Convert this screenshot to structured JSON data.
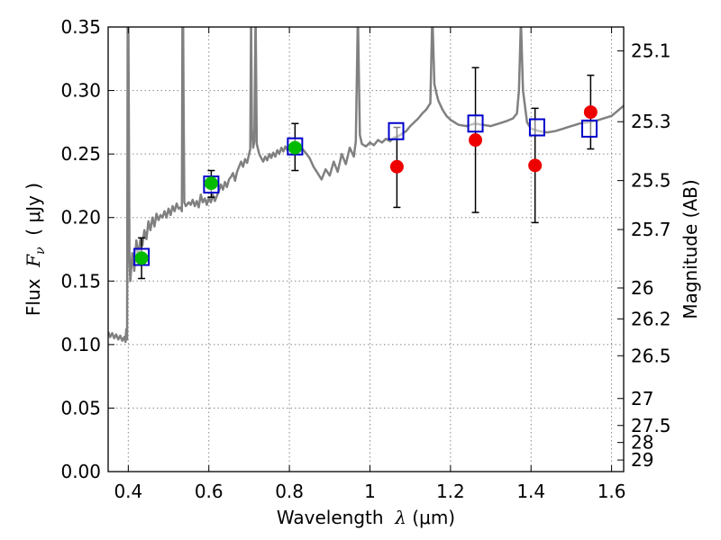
{
  "chart_data": {
    "type": "scatter",
    "xlabel_prefix": "Wavelength  ",
    "xlabel_symbol": "λ",
    "xlabel_unit": " (μm)",
    "ylabel_prefix": "Flux  ",
    "ylabel_symbol": "F",
    "ylabel_sub": "ν",
    "ylabel_unit": "  ( μJy )",
    "y2label": "Magnitude (AB)",
    "xlim": [
      0.35,
      1.63
    ],
    "ylim": [
      0.0,
      0.35
    ],
    "grid": true,
    "x_ticks": [
      {
        "value": 0.4,
        "label": "0.4"
      },
      {
        "value": 0.6,
        "label": "0.6"
      },
      {
        "value": 0.8,
        "label": "0.8"
      },
      {
        "value": 1.0,
        "label": "1"
      },
      {
        "value": 1.2,
        "label": "1.2"
      },
      {
        "value": 1.4,
        "label": "1.4"
      },
      {
        "value": 1.6,
        "label": "1.6"
      }
    ],
    "y_ticks": [
      {
        "value": 0.0,
        "label": "0.00"
      },
      {
        "value": 0.05,
        "label": "0.05"
      },
      {
        "value": 0.1,
        "label": "0.10"
      },
      {
        "value": 0.15,
        "label": "0.15"
      },
      {
        "value": 0.2,
        "label": "0.20"
      },
      {
        "value": 0.25,
        "label": "0.25"
      },
      {
        "value": 0.3,
        "label": "0.30"
      },
      {
        "value": 0.35,
        "label": "0.35"
      }
    ],
    "mag_ticks": [
      {
        "value": 25.1,
        "label": "25.1"
      },
      {
        "value": 25.3,
        "label": "25.3"
      },
      {
        "value": 25.5,
        "label": "25.5"
      },
      {
        "value": 25.7,
        "label": "25.7"
      },
      {
        "value": 26.0,
        "label": "26"
      },
      {
        "value": 26.2,
        "label": "26.2"
      },
      {
        "value": 26.5,
        "label": "26.5"
      },
      {
        "value": 27.0,
        "label": "27"
      },
      {
        "value": 27.5,
        "label": "27.5"
      },
      {
        "value": 28.0,
        "label": "28"
      },
      {
        "value": 29.0,
        "label": "29"
      }
    ],
    "colors": {
      "template": "#808080",
      "model": "#0000cc",
      "optical": "#00bb00",
      "nir": "#ee0000",
      "errorbar": "#000000",
      "grid": "#888888"
    },
    "template_spectrum": [
      [
        0.35,
        0.11
      ],
      [
        0.355,
        0.106
      ],
      [
        0.36,
        0.109
      ],
      [
        0.365,
        0.105
      ],
      [
        0.37,
        0.108
      ],
      [
        0.375,
        0.104
      ],
      [
        0.38,
        0.107
      ],
      [
        0.385,
        0.103
      ],
      [
        0.39,
        0.106
      ],
      [
        0.393,
        0.102
      ],
      [
        0.395,
        0.112
      ],
      [
        0.397,
        0.104
      ],
      [
        0.399,
        0.43
      ],
      [
        0.401,
        0.3
      ],
      [
        0.403,
        0.165
      ],
      [
        0.405,
        0.15
      ],
      [
        0.41,
        0.172
      ],
      [
        0.415,
        0.158
      ],
      [
        0.42,
        0.182
      ],
      [
        0.425,
        0.17
      ],
      [
        0.43,
        0.183
      ],
      [
        0.435,
        0.178
      ],
      [
        0.44,
        0.19
      ],
      [
        0.445,
        0.183
      ],
      [
        0.45,
        0.197
      ],
      [
        0.455,
        0.19
      ],
      [
        0.46,
        0.2
      ],
      [
        0.465,
        0.193
      ],
      [
        0.47,
        0.203
      ],
      [
        0.475,
        0.198
      ],
      [
        0.48,
        0.202
      ],
      [
        0.485,
        0.2
      ],
      [
        0.49,
        0.205
      ],
      [
        0.495,
        0.2
      ],
      [
        0.5,
        0.207
      ],
      [
        0.505,
        0.202
      ],
      [
        0.51,
        0.209
      ],
      [
        0.515,
        0.205
      ],
      [
        0.52,
        0.211
      ],
      [
        0.525,
        0.207
      ],
      [
        0.53,
        0.208
      ],
      [
        0.533,
        0.205
      ],
      [
        0.535,
        0.42
      ],
      [
        0.537,
        0.3
      ],
      [
        0.539,
        0.212
      ],
      [
        0.543,
        0.209
      ],
      [
        0.55,
        0.212
      ],
      [
        0.555,
        0.21
      ],
      [
        0.56,
        0.214
      ],
      [
        0.565,
        0.209
      ],
      [
        0.57,
        0.213
      ],
      [
        0.575,
        0.208
      ],
      [
        0.58,
        0.218
      ],
      [
        0.585,
        0.212
      ],
      [
        0.59,
        0.215
      ],
      [
        0.595,
        0.21
      ],
      [
        0.6,
        0.216
      ],
      [
        0.605,
        0.212
      ],
      [
        0.61,
        0.218
      ],
      [
        0.615,
        0.213
      ],
      [
        0.62,
        0.217
      ],
      [
        0.625,
        0.221
      ],
      [
        0.63,
        0.226
      ],
      [
        0.635,
        0.222
      ],
      [
        0.64,
        0.228
      ],
      [
        0.645,
        0.224
      ],
      [
        0.65,
        0.23
      ],
      [
        0.655,
        0.232
      ],
      [
        0.66,
        0.235
      ],
      [
        0.665,
        0.229
      ],
      [
        0.67,
        0.236
      ],
      [
        0.675,
        0.24
      ],
      [
        0.68,
        0.244
      ],
      [
        0.685,
        0.24
      ],
      [
        0.69,
        0.246
      ],
      [
        0.695,
        0.243
      ],
      [
        0.7,
        0.25
      ],
      [
        0.703,
        0.254
      ],
      [
        0.705,
        0.36
      ],
      [
        0.707,
        0.27
      ],
      [
        0.71,
        0.255
      ],
      [
        0.713,
        0.26
      ],
      [
        0.716,
        0.36
      ],
      [
        0.719,
        0.258
      ],
      [
        0.725,
        0.25
      ],
      [
        0.73,
        0.247
      ],
      [
        0.735,
        0.244
      ],
      [
        0.74,
        0.248
      ],
      [
        0.745,
        0.245
      ],
      [
        0.75,
        0.25
      ],
      [
        0.755,
        0.247
      ],
      [
        0.76,
        0.251
      ],
      [
        0.765,
        0.248
      ],
      [
        0.77,
        0.253
      ],
      [
        0.775,
        0.25
      ],
      [
        0.78,
        0.255
      ],
      [
        0.785,
        0.252
      ],
      [
        0.79,
        0.256
      ],
      [
        0.795,
        0.253
      ],
      [
        0.8,
        0.257
      ],
      [
        0.805,
        0.254
      ],
      [
        0.81,
        0.258
      ],
      [
        0.815,
        0.255
      ],
      [
        0.82,
        0.257
      ],
      [
        0.825,
        0.252
      ],
      [
        0.83,
        0.255
      ],
      [
        0.84,
        0.251
      ],
      [
        0.85,
        0.247
      ],
      [
        0.86,
        0.24
      ],
      [
        0.87,
        0.235
      ],
      [
        0.88,
        0.23
      ],
      [
        0.89,
        0.238
      ],
      [
        0.9,
        0.233
      ],
      [
        0.91,
        0.244
      ],
      [
        0.92,
        0.236
      ],
      [
        0.93,
        0.25
      ],
      [
        0.94,
        0.242
      ],
      [
        0.95,
        0.255
      ],
      [
        0.96,
        0.248
      ],
      [
        0.965,
        0.26
      ],
      [
        0.97,
        0.36
      ],
      [
        0.975,
        0.265
      ],
      [
        0.98,
        0.258
      ],
      [
        0.99,
        0.256
      ],
      [
        1.0,
        0.259
      ],
      [
        1.01,
        0.257
      ],
      [
        1.02,
        0.261
      ],
      [
        1.03,
        0.259
      ],
      [
        1.04,
        0.262
      ],
      [
        1.05,
        0.26
      ],
      [
        1.06,
        0.263
      ],
      [
        1.07,
        0.264
      ],
      [
        1.08,
        0.266
      ],
      [
        1.09,
        0.268
      ],
      [
        1.1,
        0.272
      ],
      [
        1.11,
        0.275
      ],
      [
        1.12,
        0.278
      ],
      [
        1.13,
        0.282
      ],
      [
        1.14,
        0.285
      ],
      [
        1.15,
        0.29
      ],
      [
        1.155,
        0.36
      ],
      [
        1.16,
        0.305
      ],
      [
        1.165,
        0.298
      ],
      [
        1.17,
        0.292
      ],
      [
        1.18,
        0.285
      ],
      [
        1.19,
        0.28
      ],
      [
        1.2,
        0.277
      ],
      [
        1.21,
        0.275
      ],
      [
        1.22,
        0.273
      ],
      [
        1.24,
        0.272
      ],
      [
        1.26,
        0.274
      ],
      [
        1.28,
        0.273
      ],
      [
        1.3,
        0.272
      ],
      [
        1.32,
        0.274
      ],
      [
        1.34,
        0.276
      ],
      [
        1.355,
        0.278
      ],
      [
        1.365,
        0.282
      ],
      [
        1.37,
        0.3
      ],
      [
        1.375,
        0.355
      ],
      [
        1.38,
        0.3
      ],
      [
        1.39,
        0.275
      ],
      [
        1.4,
        0.27
      ],
      [
        1.42,
        0.268
      ],
      [
        1.44,
        0.267
      ],
      [
        1.46,
        0.268
      ],
      [
        1.48,
        0.27
      ],
      [
        1.5,
        0.272
      ],
      [
        1.52,
        0.274
      ],
      [
        1.54,
        0.275
      ],
      [
        1.56,
        0.276
      ],
      [
        1.58,
        0.278
      ],
      [
        1.6,
        0.28
      ],
      [
        1.615,
        0.284
      ],
      [
        1.63,
        0.288
      ]
    ],
    "model_squares": [
      {
        "x": 0.433,
        "y": 0.169
      },
      {
        "x": 0.606,
        "y": 0.226
      },
      {
        "x": 0.814,
        "y": 0.256
      },
      {
        "x": 1.065,
        "y": 0.268
      },
      {
        "x": 1.262,
        "y": 0.274
      },
      {
        "x": 1.415,
        "y": 0.271
      },
      {
        "x": 1.545,
        "y": 0.27
      }
    ],
    "observed_points": [
      {
        "x": 0.433,
        "y": 0.168,
        "err_low": 0.152,
        "err_high": 0.184,
        "group": "optical"
      },
      {
        "x": 0.606,
        "y": 0.227,
        "err_low": 0.216,
        "err_high": 0.237,
        "group": "optical"
      },
      {
        "x": 0.814,
        "y": 0.255,
        "err_low": 0.237,
        "err_high": 0.274,
        "group": "optical"
      },
      {
        "x": 1.067,
        "y": 0.24,
        "err_low": 0.208,
        "err_high": 0.271,
        "group": "nir"
      },
      {
        "x": 1.262,
        "y": 0.261,
        "err_low": 0.204,
        "err_high": 0.318,
        "group": "nir"
      },
      {
        "x": 1.41,
        "y": 0.241,
        "err_low": 0.196,
        "err_high": 0.286,
        "group": "nir"
      },
      {
        "x": 1.548,
        "y": 0.283,
        "err_low": 0.254,
        "err_high": 0.312,
        "group": "nir"
      }
    ]
  }
}
